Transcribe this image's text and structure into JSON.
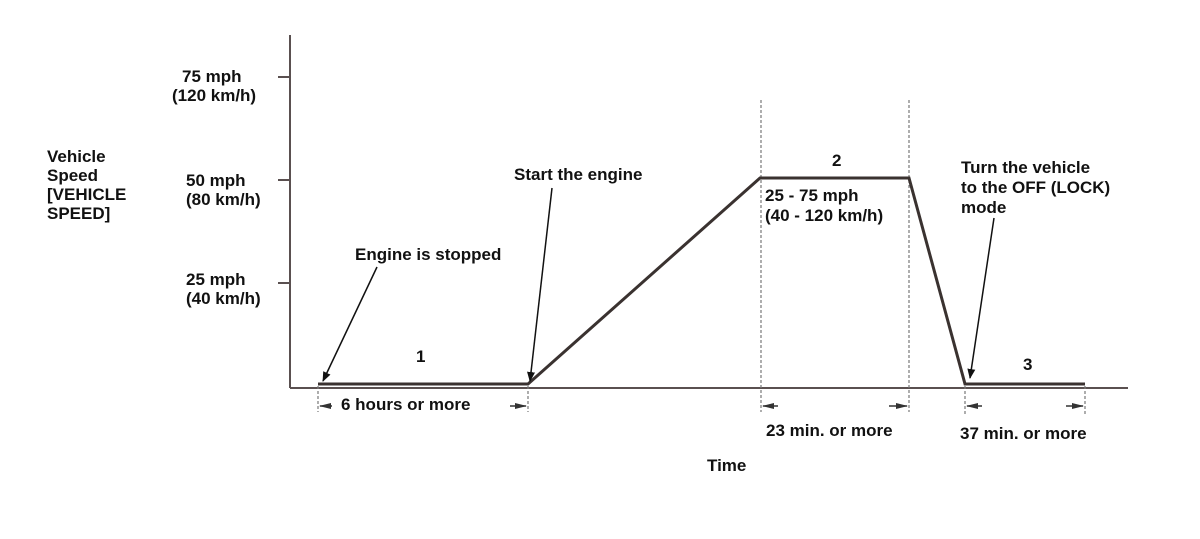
{
  "y_axis": {
    "label": [
      "Vehicle",
      "Speed",
      "[VEHICLE",
      "SPEED]"
    ],
    "ticks": [
      {
        "value_mph": 75,
        "line1": "75 mph",
        "line2": "(120 km/h)"
      },
      {
        "value_mph": 50,
        "line1": "50 mph",
        "line2": "(80 km/h)"
      },
      {
        "value_mph": 25,
        "line1": "25 mph",
        "line2": "(40 km/h)"
      }
    ]
  },
  "x_axis": {
    "label": "Time"
  },
  "phases": [
    {
      "number": "1",
      "duration": "6 hours or more"
    },
    {
      "number": "2",
      "duration": "23 min. or more",
      "speed_range": [
        "25 - 75 mph",
        "(40 - 120 km/h)"
      ]
    },
    {
      "number": "3",
      "duration": "37 min. or more"
    }
  ],
  "annotations": {
    "engine_stopped": "Engine is stopped",
    "start_engine": "Start the engine",
    "turn_off": [
      "Turn the vehicle",
      "to the OFF (LOCK)",
      "mode"
    ]
  },
  "colors": {
    "line": "#3a3230",
    "axis": "#5a5050",
    "text": "#111111"
  }
}
